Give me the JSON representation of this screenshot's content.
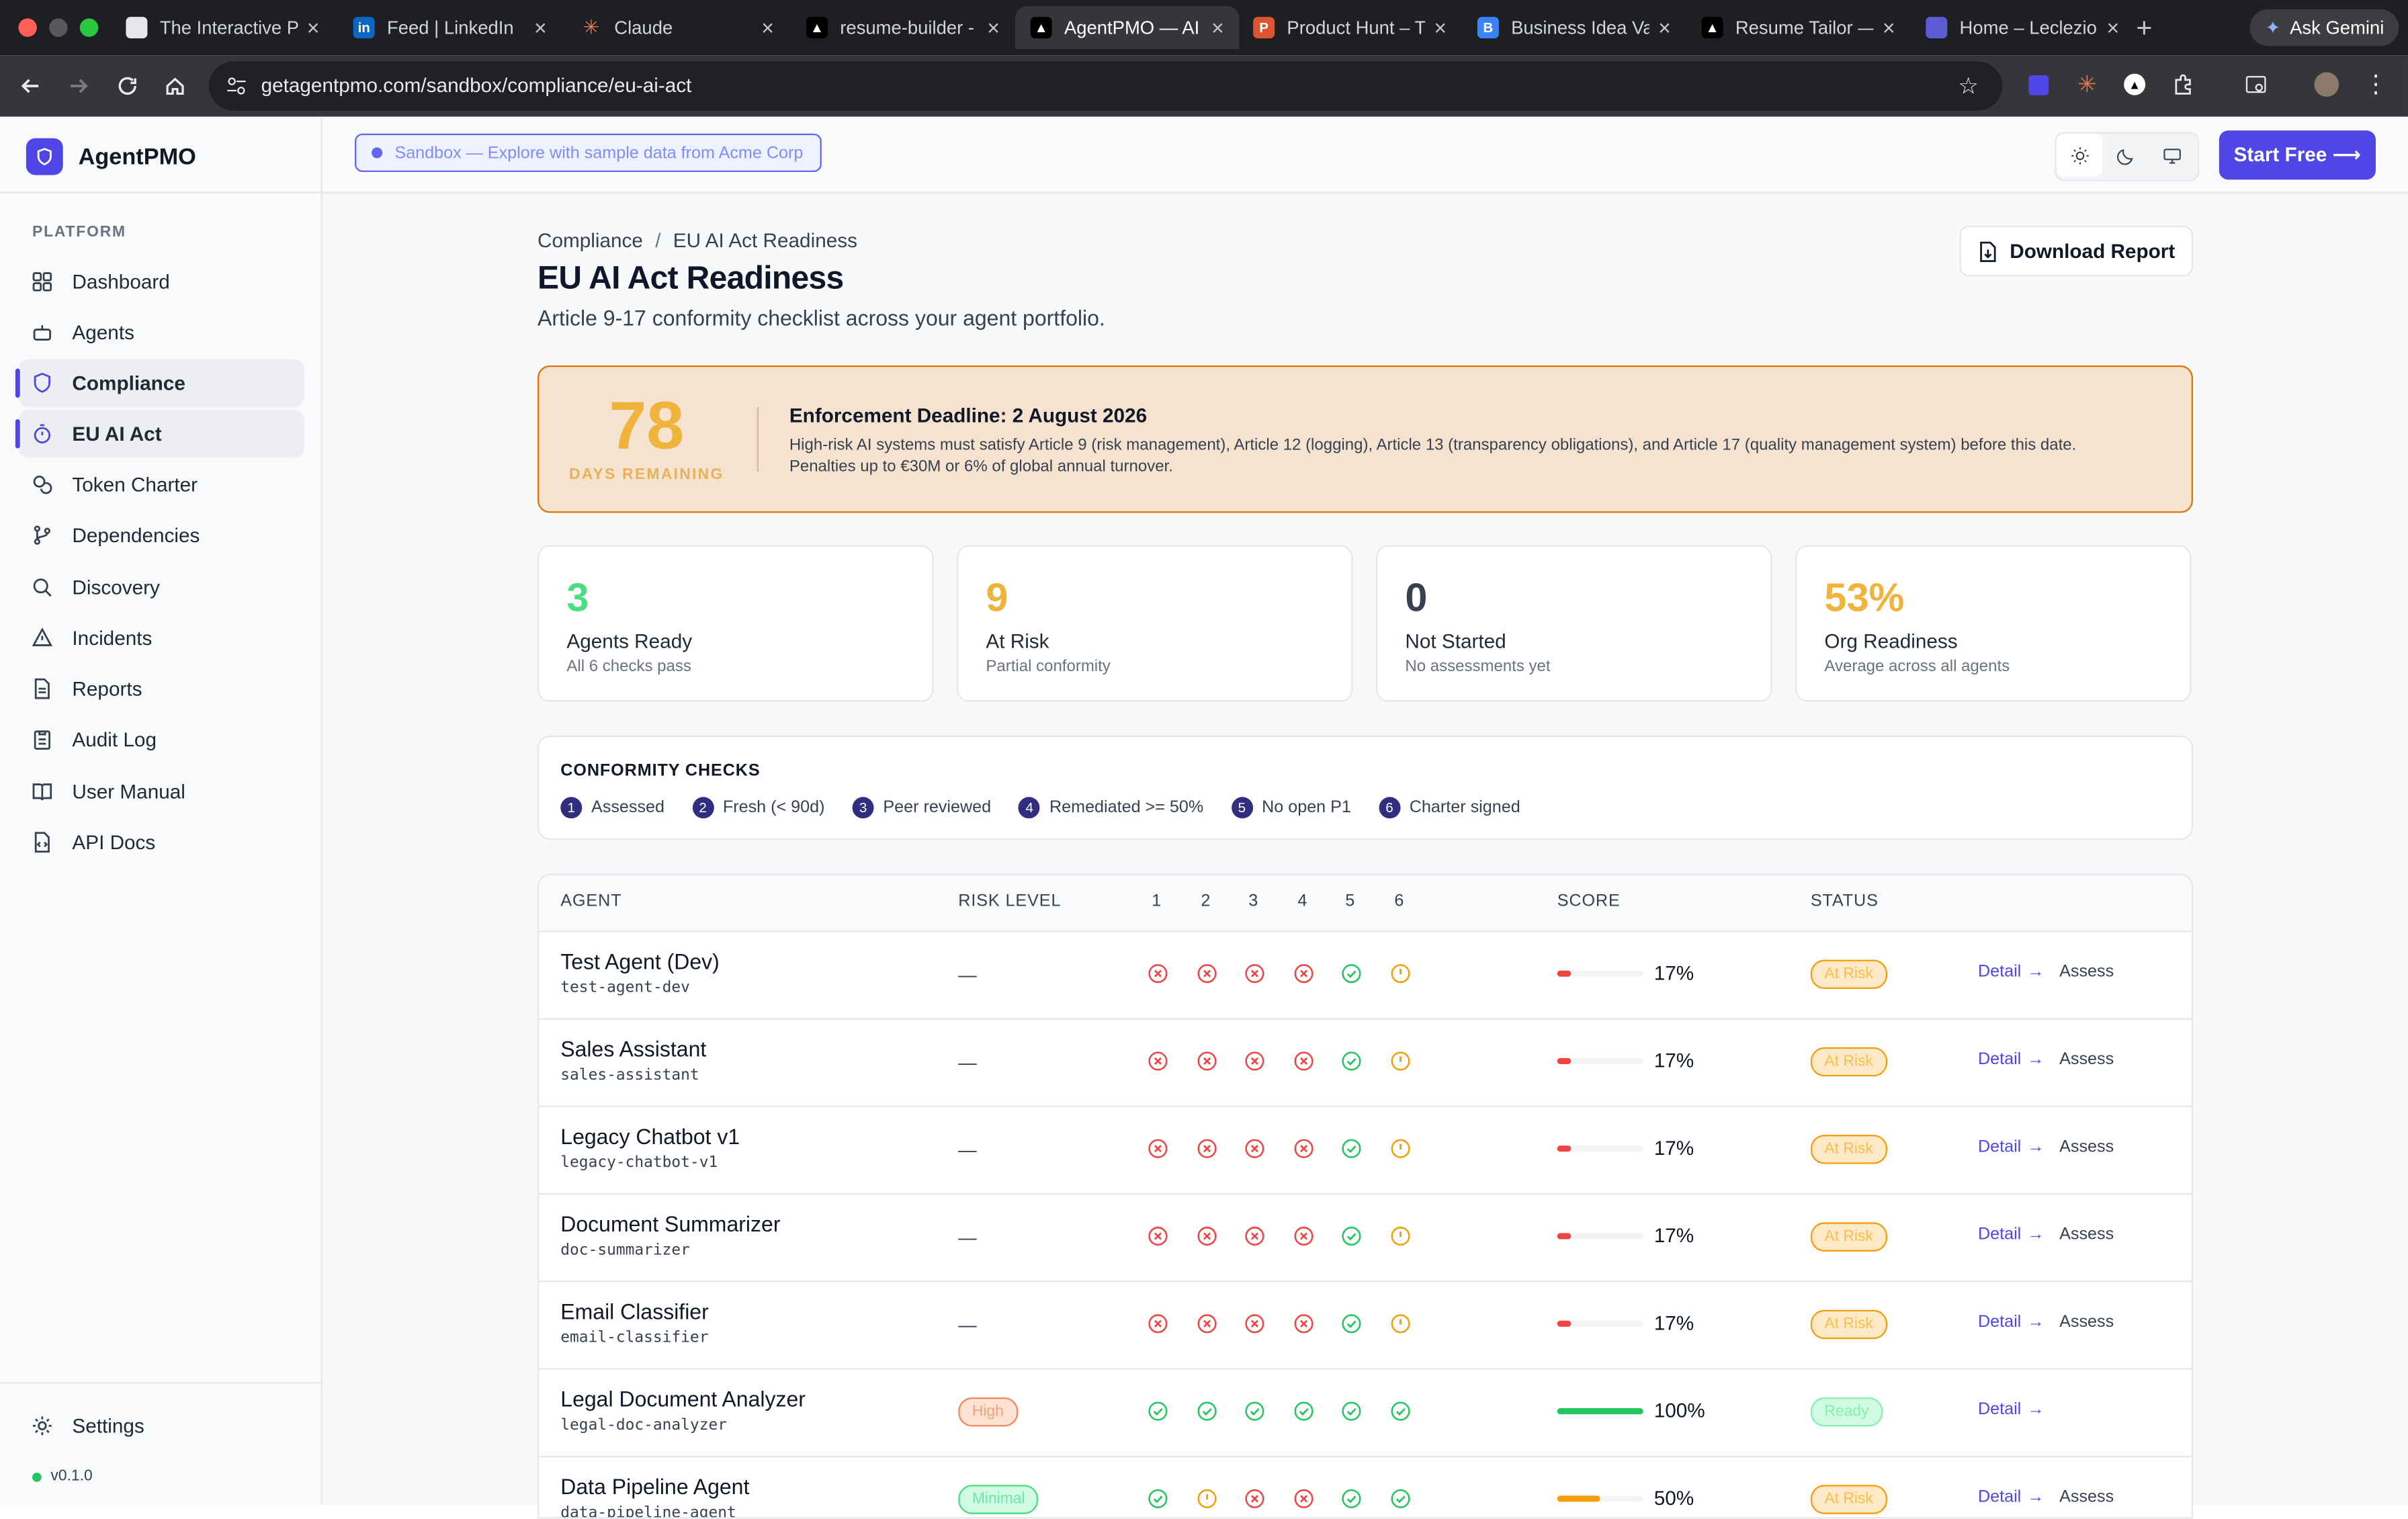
{
  "browser": {
    "tabs": [
      {
        "title": "The Interactive P",
        "active": false,
        "favicon_color": "#e5e7eb",
        "favicon_text": ""
      },
      {
        "title": "Feed | LinkedIn",
        "active": false,
        "favicon_color": "#0a66c2",
        "favicon_text": "in"
      },
      {
        "title": "Claude",
        "active": false,
        "favicon_color": "#d97757",
        "favicon_text": "✳"
      },
      {
        "title": "resume-builder -",
        "active": false,
        "favicon_color": "#000000",
        "favicon_text": "▲"
      },
      {
        "title": "AgentPMO — AI",
        "active": true,
        "favicon_color": "#000000",
        "favicon_text": "▲"
      },
      {
        "title": "Product Hunt – T",
        "active": false,
        "favicon_color": "#da552f",
        "favicon_text": "P"
      },
      {
        "title": "Business Idea Va",
        "active": false,
        "favicon_color": "#3b82f6",
        "favicon_text": "B"
      },
      {
        "title": "Resume Tailor —",
        "active": false,
        "favicon_color": "#000000",
        "favicon_text": "▲"
      },
      {
        "title": "Home – Leclezio",
        "active": false,
        "favicon_color": "#5b5bd6",
        "favicon_text": ""
      }
    ],
    "ask_gemini": "Ask Gemini",
    "url": "getagentpmo.com/sandbox/compliance/eu-ai-act"
  },
  "app": {
    "brand": "AgentPMO",
    "accent": "#4f46e5",
    "sandbox_banner": "Sandbox — Explore with sample data from Acme Corp",
    "start_free": "Start Free ⟶",
    "version": "v0.1.0"
  },
  "sidebar": {
    "section": "PLATFORM",
    "items": [
      {
        "label": "Dashboard",
        "icon": "grid-icon",
        "active": false
      },
      {
        "label": "Agents",
        "icon": "bot-icon",
        "active": false
      },
      {
        "label": "Compliance",
        "icon": "shield-icon",
        "active": true
      },
      {
        "label": "EU AI Act",
        "icon": "timer-icon",
        "active": true
      },
      {
        "label": "Token Charter",
        "icon": "coins-icon",
        "active": false
      },
      {
        "label": "Dependencies",
        "icon": "git-branch-icon",
        "active": false
      },
      {
        "label": "Discovery",
        "icon": "search-icon",
        "active": false
      },
      {
        "label": "Incidents",
        "icon": "alert-triangle-icon",
        "active": false
      },
      {
        "label": "Reports",
        "icon": "file-text-icon",
        "active": false
      },
      {
        "label": "Audit Log",
        "icon": "clipboard-icon",
        "active": false
      },
      {
        "label": "User Manual",
        "icon": "book-icon",
        "active": false
      },
      {
        "label": "API Docs",
        "icon": "file-code-icon",
        "active": false
      }
    ],
    "settings": "Settings"
  },
  "page": {
    "breadcrumb": [
      "Compliance",
      "EU AI Act Readiness"
    ],
    "title": "EU AI Act Readiness",
    "subtitle": "Article 9-17 conformity checklist across your agent portfolio.",
    "download": "Download Report"
  },
  "deadline": {
    "days": "78",
    "days_label": "DAYS REMAINING",
    "title": "Enforcement Deadline: 2 August 2026",
    "text": "High-risk AI systems must satisfy Article 9 (risk management), Article 12 (logging), Article 13 (transparency obligations), and Article 17 (quality management system) before this date. Penalties up to €30M or 6% of global annual turnover."
  },
  "stats": [
    {
      "value": "3",
      "label": "Agents Ready",
      "sub": "All 6 checks pass",
      "color": "#4ade80"
    },
    {
      "value": "9",
      "label": "At Risk",
      "sub": "Partial conformity",
      "color": "#f0b33c"
    },
    {
      "value": "0",
      "label": "Not Started",
      "sub": "No assessments yet",
      "color": "#374151"
    },
    {
      "value": "53%",
      "label": "Org Readiness",
      "sub": "Average across all agents",
      "color": "#f0b33c"
    }
  ],
  "checks": {
    "title": "CONFORMITY CHECKS",
    "items": [
      {
        "n": "1",
        "label": "Assessed"
      },
      {
        "n": "2",
        "label": "Fresh (< 90d)"
      },
      {
        "n": "3",
        "label": "Peer reviewed"
      },
      {
        "n": "4",
        "label": "Remediated >= 50%"
      },
      {
        "n": "5",
        "label": "No open P1"
      },
      {
        "n": "6",
        "label": "Charter signed"
      }
    ]
  },
  "table": {
    "headers": {
      "agent": "AGENT",
      "risk": "RISK LEVEL",
      "c1": "1",
      "c2": "2",
      "c3": "3",
      "c4": "4",
      "c5": "5",
      "c6": "6",
      "score": "SCORE",
      "status": "STATUS"
    },
    "detail_label": "Detail",
    "assess_label": "Assess",
    "rows": [
      {
        "name": "Test Agent (Dev)",
        "slug": "test-agent-dev",
        "risk": "—",
        "checks": [
          "fail",
          "fail",
          "fail",
          "fail",
          "pass",
          "warn"
        ],
        "score": 17,
        "score_text": "17%",
        "status": "At Risk",
        "assess": true
      },
      {
        "name": "Sales Assistant",
        "slug": "sales-assistant",
        "risk": "—",
        "checks": [
          "fail",
          "fail",
          "fail",
          "fail",
          "pass",
          "warn"
        ],
        "score": 17,
        "score_text": "17%",
        "status": "At Risk",
        "assess": true
      },
      {
        "name": "Legacy Chatbot v1",
        "slug": "legacy-chatbot-v1",
        "risk": "—",
        "checks": [
          "fail",
          "fail",
          "fail",
          "fail",
          "pass",
          "warn"
        ],
        "score": 17,
        "score_text": "17%",
        "status": "At Risk",
        "assess": true
      },
      {
        "name": "Document Summarizer",
        "slug": "doc-summarizer",
        "risk": "—",
        "checks": [
          "fail",
          "fail",
          "fail",
          "fail",
          "pass",
          "warn"
        ],
        "score": 17,
        "score_text": "17%",
        "status": "At Risk",
        "assess": true
      },
      {
        "name": "Email Classifier",
        "slug": "email-classifier",
        "risk": "—",
        "checks": [
          "fail",
          "fail",
          "fail",
          "fail",
          "pass",
          "warn"
        ],
        "score": 17,
        "score_text": "17%",
        "status": "At Risk",
        "assess": true
      },
      {
        "name": "Legal Document Analyzer",
        "slug": "legal-doc-analyzer",
        "risk": "High",
        "checks": [
          "pass",
          "pass",
          "pass",
          "pass",
          "pass",
          "pass"
        ],
        "score": 100,
        "score_text": "100%",
        "status": "Ready",
        "assess": false
      },
      {
        "name": "Data Pipeline Agent",
        "slug": "data-pipeline-agent",
        "risk": "Minimal",
        "checks": [
          "pass",
          "warn",
          "fail",
          "fail",
          "pass",
          "pass"
        ],
        "score": 50,
        "score_text": "50%",
        "status": "At Risk",
        "assess": true
      }
    ]
  }
}
